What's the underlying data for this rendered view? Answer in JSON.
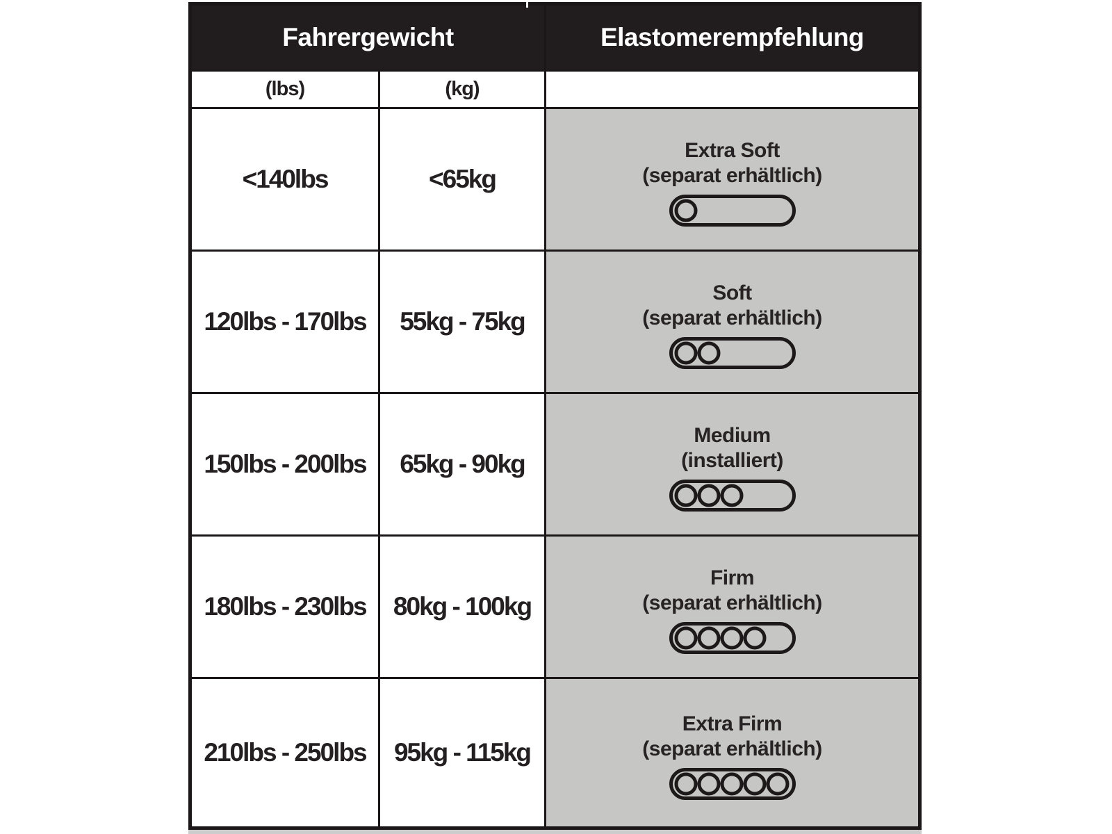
{
  "table": {
    "header": {
      "col_weight": "Fahrergewicht",
      "col_elastomer": "Elastomerempfehlung"
    },
    "subheader": {
      "lbs": "(lbs)",
      "kg": "(kg)",
      "elastomer": ""
    },
    "rows": [
      {
        "lbs": "<140lbs",
        "kg": "<65kg",
        "level": "Extra Soft",
        "note": "(separat erhältlich)",
        "elastomer_count": 1
      },
      {
        "lbs": "120lbs - 170lbs",
        "kg": "55kg - 75kg",
        "level": "Soft",
        "note": "(separat erhältlich)",
        "elastomer_count": 2
      },
      {
        "lbs": "150lbs - 200lbs",
        "kg": "65kg - 90kg",
        "level": "Medium",
        "note": "(installiert)",
        "elastomer_count": 3
      },
      {
        "lbs": "180lbs - 230lbs",
        "kg": "80kg - 100kg",
        "level": "Firm",
        "note": "(separat erhältlich)",
        "elastomer_count": 4
      },
      {
        "lbs": "210lbs - 250lbs",
        "kg": "95kg - 115kg",
        "level": "Extra Firm",
        "note": "(separat erhältlich)",
        "elastomer_count": 5
      }
    ],
    "colors": {
      "header_bg": "#211d1e",
      "border": "#1b1718",
      "recommendation_bg": "#c6c6c4",
      "text": "#242021",
      "header_text": "#ffffff"
    }
  },
  "chart_data": {
    "type": "table",
    "title_columns": [
      "Fahrergewicht",
      "Elastomerempfehlung"
    ],
    "unit_columns": [
      "(lbs)",
      "(kg)",
      ""
    ],
    "rows": [
      [
        "<140lbs",
        "<65kg",
        "Extra Soft (separat erhältlich)",
        1
      ],
      [
        "120lbs - 170lbs",
        "55kg - 75kg",
        "Soft (separat erhältlich)",
        2
      ],
      [
        "150lbs - 200lbs",
        "65kg - 90kg",
        "Medium (installiert)",
        3
      ],
      [
        "180lbs - 230lbs",
        "80kg - 100kg",
        "Firm (separat erhältlich)",
        4
      ],
      [
        "210lbs - 250lbs",
        "95kg - 115kg",
        "Extra Firm (separat erhältlich)",
        5
      ]
    ],
    "notes": "Last column of each row shows a pill icon containing N circles = number of elastomers"
  }
}
